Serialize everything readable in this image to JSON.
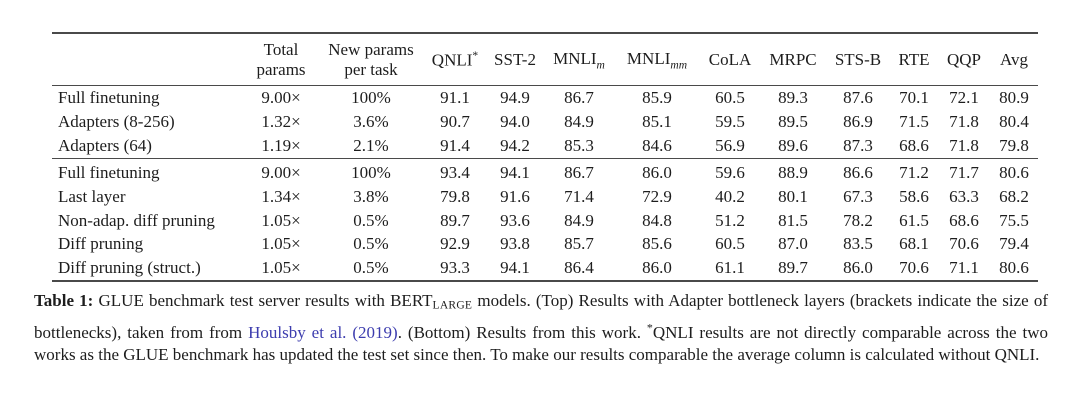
{
  "colors": {
    "text": "#1d1d1d",
    "link": "#3c3cae",
    "rule": "#4a4a4a",
    "background": "#ffffff"
  },
  "table": {
    "columns": [
      {
        "id": "method",
        "label": ""
      },
      {
        "id": "total-params",
        "label": "Total params",
        "wrap": true
      },
      {
        "id": "new-params",
        "label": "New params per task",
        "wrap": true
      },
      {
        "id": "qnli",
        "label": "QNLI",
        "sup": "*"
      },
      {
        "id": "sst2",
        "label": "SST-2"
      },
      {
        "id": "mnli-m",
        "label": "MNLI",
        "sub": "m"
      },
      {
        "id": "mnli-mm",
        "label": "MNLI",
        "sub": "mm"
      },
      {
        "id": "cola",
        "label": "CoLA"
      },
      {
        "id": "mrpc",
        "label": "MRPC"
      },
      {
        "id": "stsb",
        "label": "STS-B"
      },
      {
        "id": "rte",
        "label": "RTE"
      },
      {
        "id": "qqp",
        "label": "QQP"
      },
      {
        "id": "avg",
        "label": "Avg"
      }
    ],
    "groups": [
      {
        "name": "adapters-houlsby-2019",
        "rows": [
          [
            "Full finetuning",
            "9.00×",
            "100%",
            "91.1",
            "94.9",
            "86.7",
            "85.9",
            "60.5",
            "89.3",
            "87.6",
            "70.1",
            "72.1",
            "80.9"
          ],
          [
            "Adapters (8-256)",
            "1.32×",
            "3.6%",
            "90.7",
            "94.0",
            "84.9",
            "85.1",
            "59.5",
            "89.5",
            "86.9",
            "71.5",
            "71.8",
            "80.4"
          ],
          [
            "Adapters (64)",
            "1.19×",
            "2.1%",
            "91.4",
            "94.2",
            "85.3",
            "84.6",
            "56.9",
            "89.6",
            "87.3",
            "68.6",
            "71.8",
            "79.8"
          ]
        ]
      },
      {
        "name": "this-work",
        "rows": [
          [
            "Full finetuning",
            "9.00×",
            "100%",
            "93.4",
            "94.1",
            "86.7",
            "86.0",
            "59.6",
            "88.9",
            "86.6",
            "71.2",
            "71.7",
            "80.6"
          ],
          [
            "Last layer",
            "1.34×",
            "3.8%",
            "79.8",
            "91.6",
            "71.4",
            "72.9",
            "40.2",
            "80.1",
            "67.3",
            "58.6",
            "63.3",
            "68.2"
          ],
          [
            "Non-adap. diff pruning",
            "1.05×",
            "0.5%",
            "89.7",
            "93.6",
            "84.9",
            "84.8",
            "51.2",
            "81.5",
            "78.2",
            "61.5",
            "68.6",
            "75.5"
          ],
          [
            "Diff pruning",
            "1.05×",
            "0.5%",
            "92.9",
            "93.8",
            "85.7",
            "85.6",
            "60.5",
            "87.0",
            "83.5",
            "68.1",
            "70.6",
            "79.4"
          ],
          [
            "Diff pruning (struct.)",
            "1.05×",
            "0.5%",
            "93.3",
            "94.1",
            "86.4",
            "86.0",
            "61.1",
            "89.7",
            "86.0",
            "70.6",
            "71.1",
            "80.6"
          ]
        ]
      }
    ]
  },
  "caption": {
    "label": "Table 1:",
    "segments": [
      {
        "text": "GLUE benchmark test server results with BERT"
      },
      {
        "text": "LARGE",
        "style": "subscript-smallcaps"
      },
      {
        "text": " models. (Top) Results with Adapter bottleneck layers (brackets indicate the size of bottlenecks), taken from from "
      },
      {
        "text": "Houlsby et al. (2019)",
        "style": "link"
      },
      {
        "text": ". (Bottom) Results from this work. "
      },
      {
        "text": "*",
        "style": "superscript"
      },
      {
        "text": "QNLI results are not directly comparable across the two works as the GLUE benchmark has updated the test set since then. To make our results comparable the average column is calculated without QNLI."
      }
    ]
  }
}
